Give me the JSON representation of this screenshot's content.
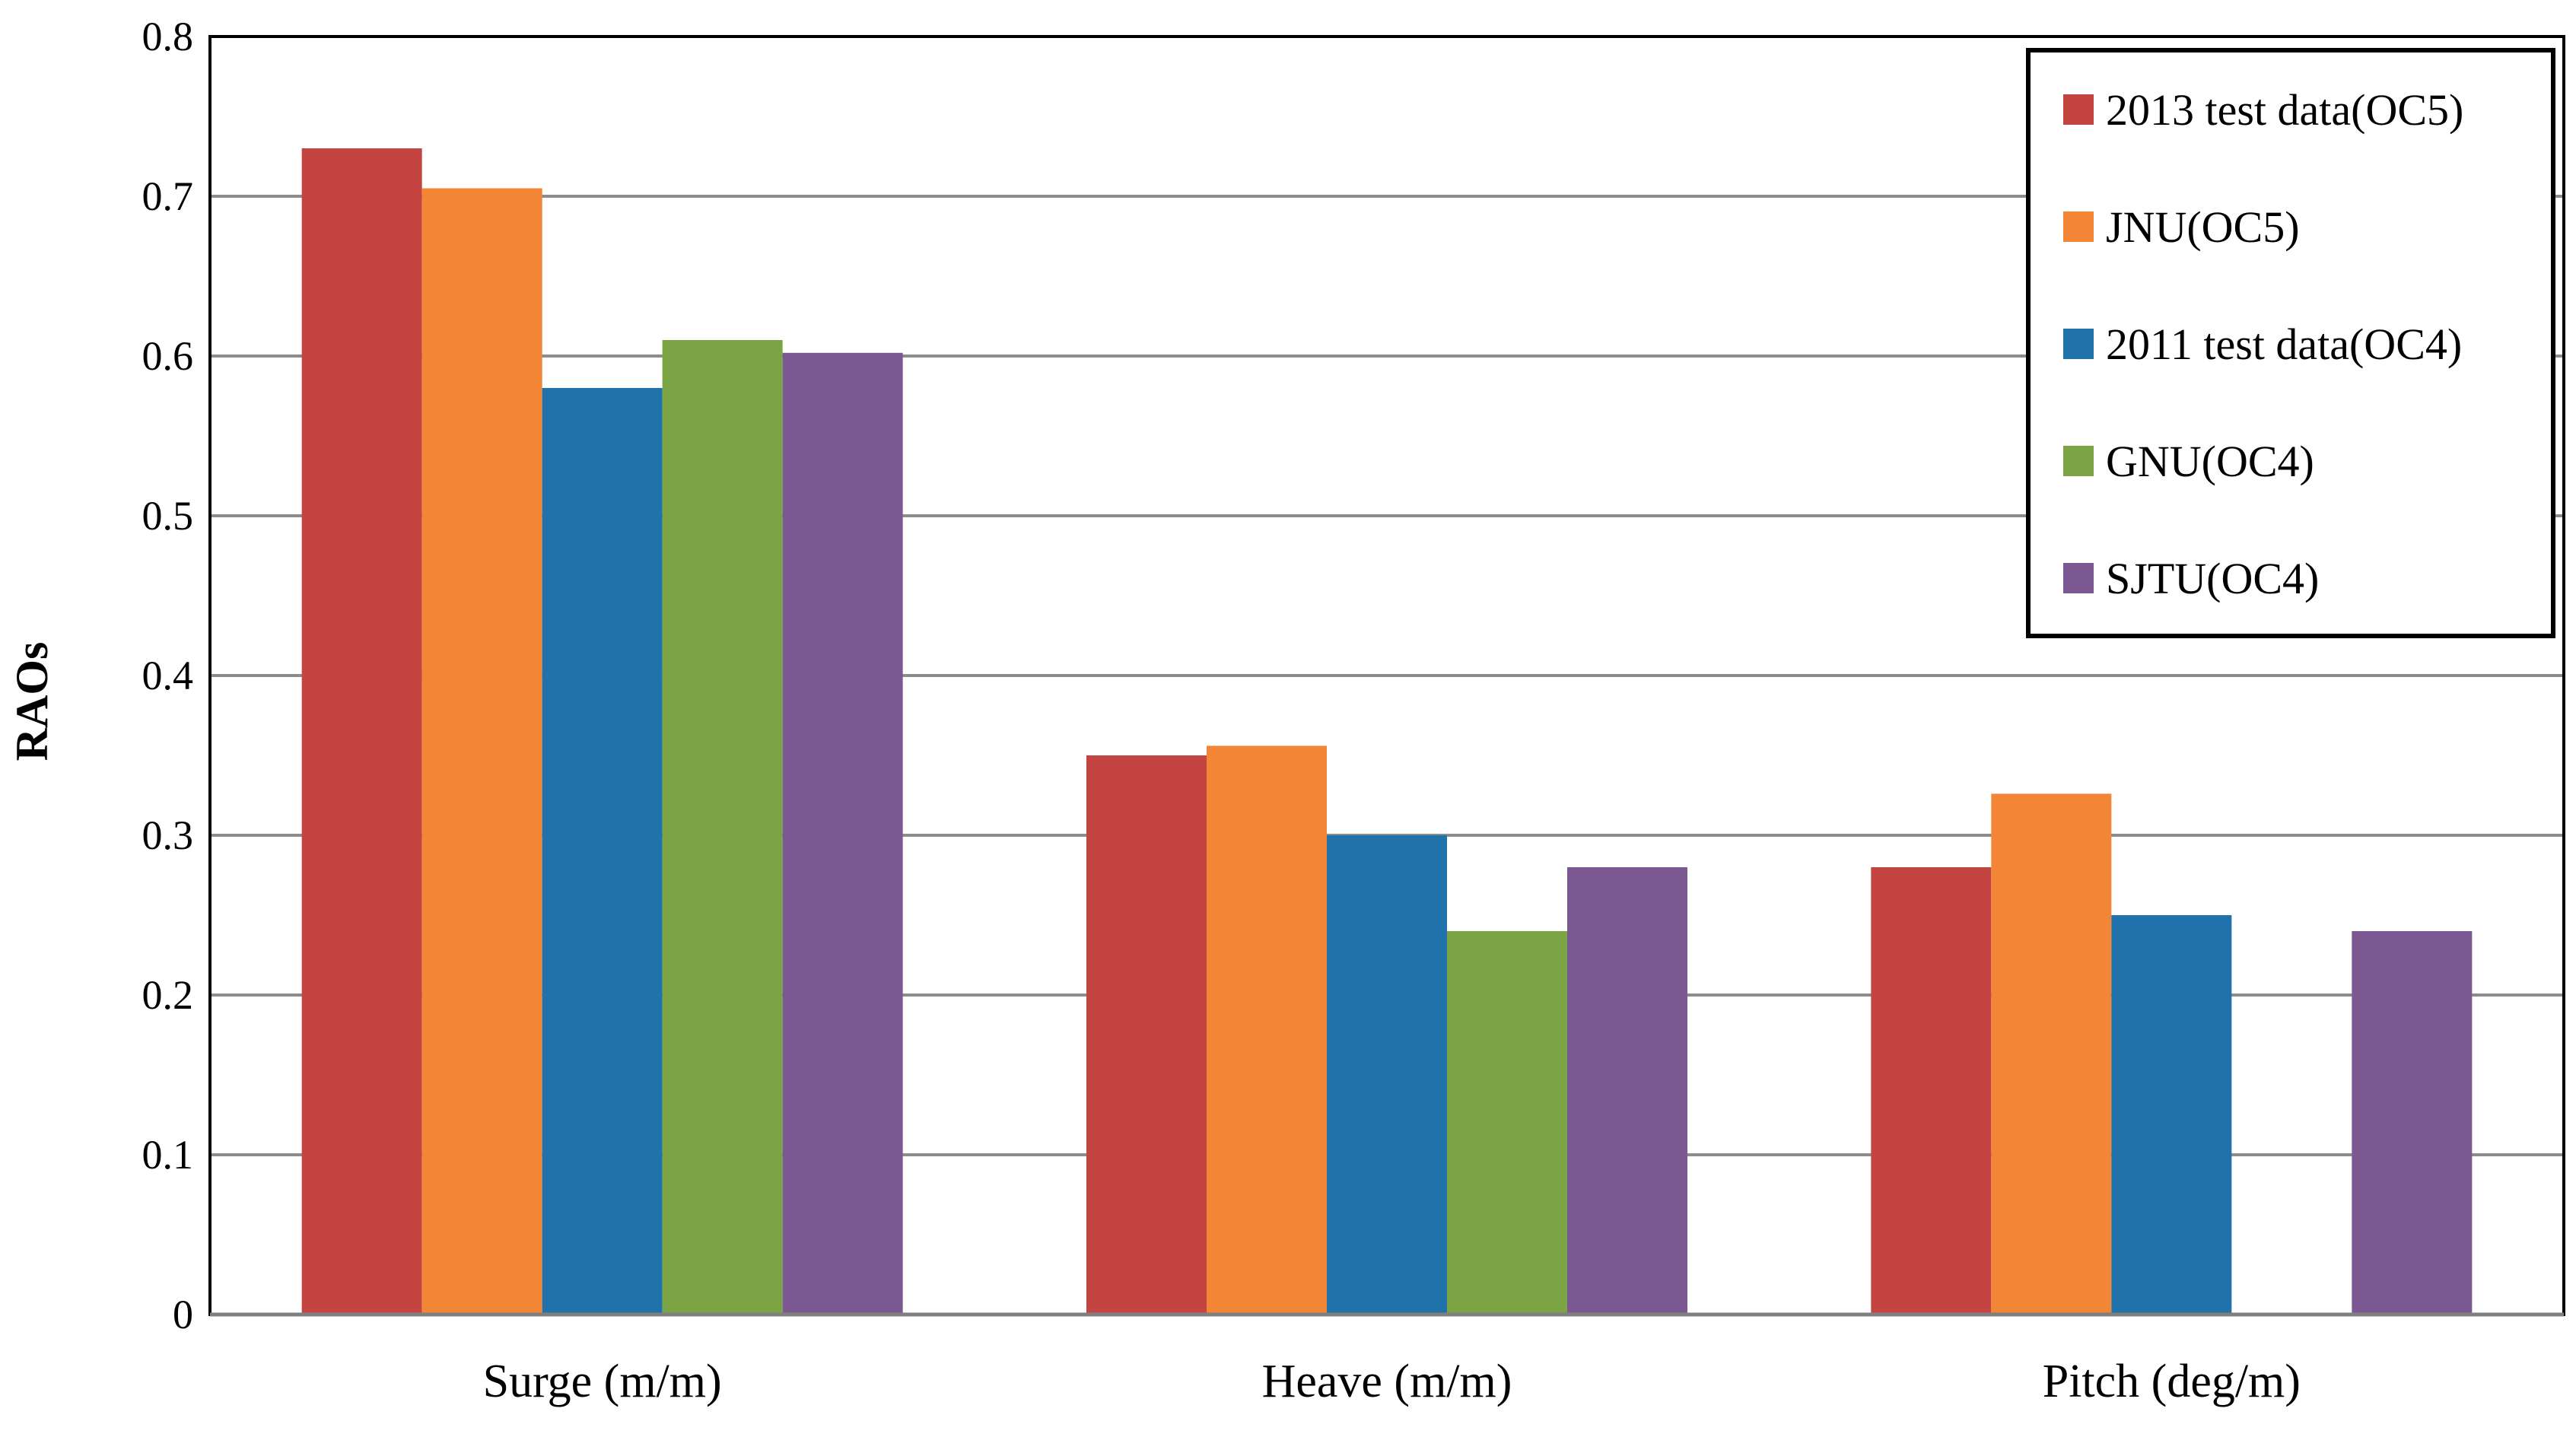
{
  "chart_data": {
    "type": "bar",
    "title": "",
    "xlabel": "",
    "ylabel": "RAOs",
    "ylim": [
      0,
      0.8
    ],
    "yticks": [
      "0",
      "0.1",
      "0.2",
      "0.3",
      "0.4",
      "0.5",
      "0.6",
      "0.7",
      "0.8"
    ],
    "grid": true,
    "legend_position": "top-right",
    "categories": [
      "Surge (m/m)",
      "Heave (m/m)",
      "Pitch (deg/m)"
    ],
    "series": [
      {
        "name": "2013 test data(OC5)",
        "color": "#C44441",
        "values": [
          0.73,
          0.35,
          0.28
        ]
      },
      {
        "name": "JNU(OC5)",
        "color": "#F28636",
        "values": [
          0.705,
          0.356,
          0.326
        ]
      },
      {
        "name": "2011 test data(OC4)",
        "color": "#1F72AA",
        "values": [
          0.58,
          0.3,
          0.25
        ]
      },
      {
        "name": "GNU(OC4)",
        "color": "#7BA545",
        "values": [
          0.61,
          0.24,
          null
        ]
      },
      {
        "name": "SJTU(OC4)",
        "color": "#7C5893",
        "values": [
          0.602,
          0.28,
          0.24
        ]
      }
    ]
  }
}
